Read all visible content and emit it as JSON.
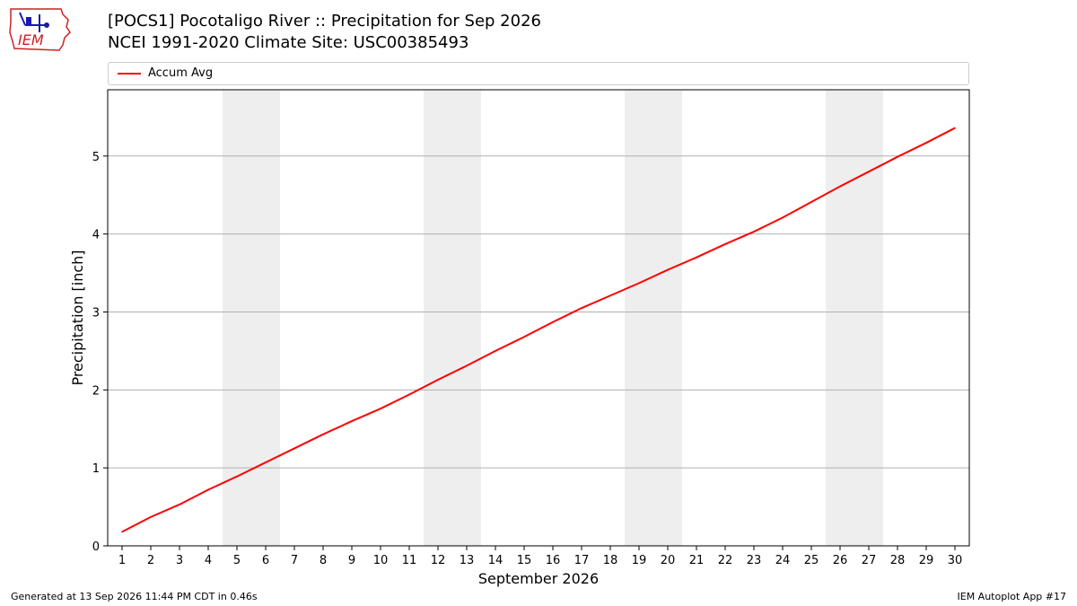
{
  "header": {
    "title_line1": "[POCS1] Pocotaligo River :: Precipitation for Sep 2026",
    "title_line2": "NCEI 1991-2020 Climate Site: USC00385493",
    "logo_text": "IEM"
  },
  "footer": {
    "generated": "Generated at 13 Sep 2026 11:44 PM CDT in 0.46s",
    "app": "IEM Autoplot App #17"
  },
  "colors": {
    "series": "#ff0000",
    "weekend_band": "#eeeeee",
    "grid": "#b0b0b0",
    "logo_red": "#cc2222",
    "logo_blue": "#1a1ab0"
  },
  "chart_data": {
    "type": "line",
    "xlabel": "September 2026",
    "ylabel": "Precipitation [inch]",
    "x": [
      1,
      2,
      3,
      4,
      5,
      6,
      7,
      8,
      9,
      10,
      11,
      12,
      13,
      14,
      15,
      16,
      17,
      18,
      19,
      20,
      21,
      22,
      23,
      24,
      25,
      26,
      27,
      28,
      29,
      30
    ],
    "xlim": [
      0.5,
      30.5
    ],
    "ylim": [
      0,
      5.85
    ],
    "yticks": [
      0,
      1,
      2,
      3,
      4,
      5
    ],
    "grid": "horizontal",
    "legend": "top",
    "weekend_bands": [
      [
        4.5,
        6.5
      ],
      [
        11.5,
        13.5
      ],
      [
        18.5,
        20.5
      ],
      [
        25.5,
        27.5
      ]
    ],
    "series": [
      {
        "name": "Accum Avg",
        "values": [
          0.18,
          0.37,
          0.53,
          0.72,
          0.89,
          1.07,
          1.25,
          1.43,
          1.6,
          1.76,
          1.94,
          2.13,
          2.31,
          2.5,
          2.68,
          2.87,
          3.05,
          3.21,
          3.37,
          3.54,
          3.7,
          3.87,
          4.03,
          4.21,
          4.41,
          4.61,
          4.8,
          4.99,
          5.17,
          5.36
        ]
      }
    ]
  }
}
